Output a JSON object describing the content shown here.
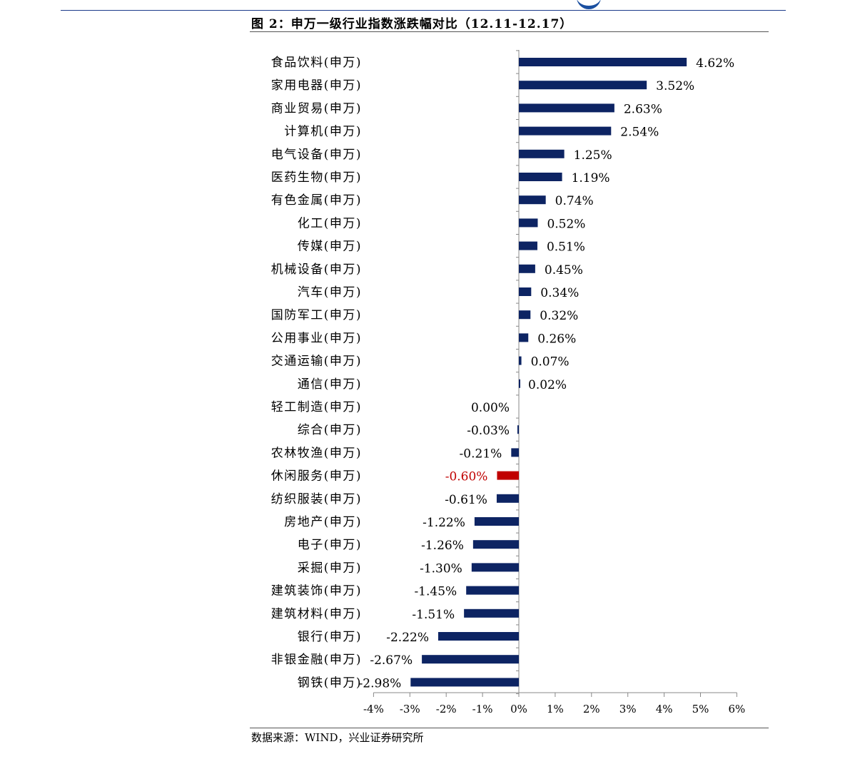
{
  "figure": {
    "title": "图 2：申万一级行业指数涨跌幅对比（12.11-12.17）",
    "source": "数据来源：WIND，兴业证券研究所"
  },
  "chart_data": {
    "type": "bar",
    "orientation": "horizontal",
    "title": "图 2：申万一级行业指数涨跌幅对比（12.11-12.17）",
    "xlabel": "",
    "ylabel": "",
    "xlim": [
      -4,
      6
    ],
    "x_ticks": [
      "-4%",
      "-3%",
      "-2%",
      "-1%",
      "0%",
      "1%",
      "2%",
      "3%",
      "4%",
      "5%",
      "6%"
    ],
    "grid": false,
    "legend": "none",
    "colors": {
      "default": "#0d2463",
      "highlight": "#c00000"
    },
    "highlight_category": "休闲服务(申万)",
    "categories": [
      "食品饮料(申万)",
      "家用电器(申万)",
      "商业贸易(申万)",
      "计算机(申万)",
      "电气设备(申万)",
      "医药生物(申万)",
      "有色金属(申万)",
      "化工(申万)",
      "传媒(申万)",
      "机械设备(申万)",
      "汽车(申万)",
      "国防军工(申万)",
      "公用事业(申万)",
      "交通运输(申万)",
      "通信(申万)",
      "轻工制造(申万)",
      "综合(申万)",
      "农林牧渔(申万)",
      "休闲服务(申万)",
      "纺织服装(申万)",
      "房地产(申万)",
      "电子(申万)",
      "采掘(申万)",
      "建筑装饰(申万)",
      "建筑材料(申万)",
      "银行(申万)",
      "非银金融(申万)",
      "钢铁(申万)"
    ],
    "values": [
      4.62,
      3.52,
      2.63,
      2.54,
      1.25,
      1.19,
      0.74,
      0.52,
      0.51,
      0.45,
      0.34,
      0.32,
      0.26,
      0.07,
      0.02,
      0.0,
      -0.03,
      -0.21,
      -0.6,
      -0.61,
      -1.22,
      -1.26,
      -1.3,
      -1.45,
      -1.51,
      -2.22,
      -2.67,
      -2.98
    ],
    "value_labels": [
      "4.62%",
      "3.52%",
      "2.63%",
      "2.54%",
      "1.25%",
      "1.19%",
      "0.74%",
      "0.52%",
      "0.51%",
      "0.45%",
      "0.34%",
      "0.32%",
      "0.26%",
      "0.07%",
      "0.02%",
      "0.00%",
      "-0.03%",
      "-0.21%",
      "-0.60%",
      "-0.61%",
      "-1.22%",
      "-1.26%",
      "-1.30%",
      "-1.45%",
      "-1.51%",
      "-2.22%",
      "-2.67%",
      "-2.98%"
    ]
  }
}
